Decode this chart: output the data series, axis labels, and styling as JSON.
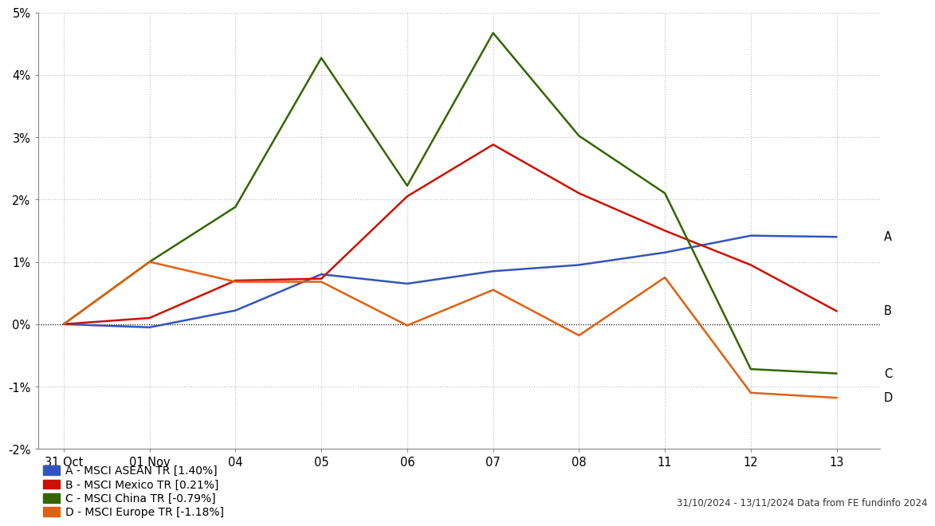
{
  "x_labels": [
    "31 Oct",
    "01 Nov",
    "04",
    "05",
    "06",
    "07",
    "08",
    "11",
    "12",
    "13"
  ],
  "x_positions": [
    0,
    1,
    2,
    3,
    4,
    5,
    6,
    7,
    8,
    9
  ],
  "series": {
    "A": {
      "label": "A - MSCI ASEAN TR [1.40%]",
      "color": "#3355BB",
      "values": [
        0.0,
        -0.05,
        0.22,
        0.8,
        0.65,
        0.85,
        0.95,
        1.15,
        1.42,
        1.4
      ]
    },
    "B": {
      "label": "B - MSCI Mexico TR [0.21%]",
      "color": "#CC1100",
      "values": [
        0.0,
        0.1,
        0.7,
        0.73,
        2.05,
        2.88,
        2.1,
        1.5,
        0.95,
        0.21
      ]
    },
    "C": {
      "label": "C - MSCI China TR [-0.79%]",
      "color": "#336600",
      "values": [
        0.0,
        1.0,
        1.88,
        4.27,
        2.22,
        4.67,
        3.02,
        2.1,
        -0.72,
        -0.79
      ]
    },
    "D": {
      "label": "D - MSCI Europe TR [-1.18%]",
      "color": "#E06010",
      "values": [
        0.0,
        1.0,
        0.68,
        0.68,
        -0.02,
        0.55,
        -0.18,
        0.75,
        -1.1,
        -1.18
      ]
    }
  },
  "ylim": [
    -2.0,
    5.0
  ],
  "yticks": [
    -2.0,
    -1.0,
    0.0,
    1.0,
    2.0,
    3.0,
    4.0,
    5.0
  ],
  "ytick_labels": [
    "-2%",
    "-1%",
    "0%",
    "1%",
    "2%",
    "3%",
    "4%",
    "5%"
  ],
  "footnote": "31/10/2024 - 13/11/2024 Data from FE fundinfo 2024",
  "bg_color": "#ffffff",
  "grid_color": "#bbbbbb"
}
